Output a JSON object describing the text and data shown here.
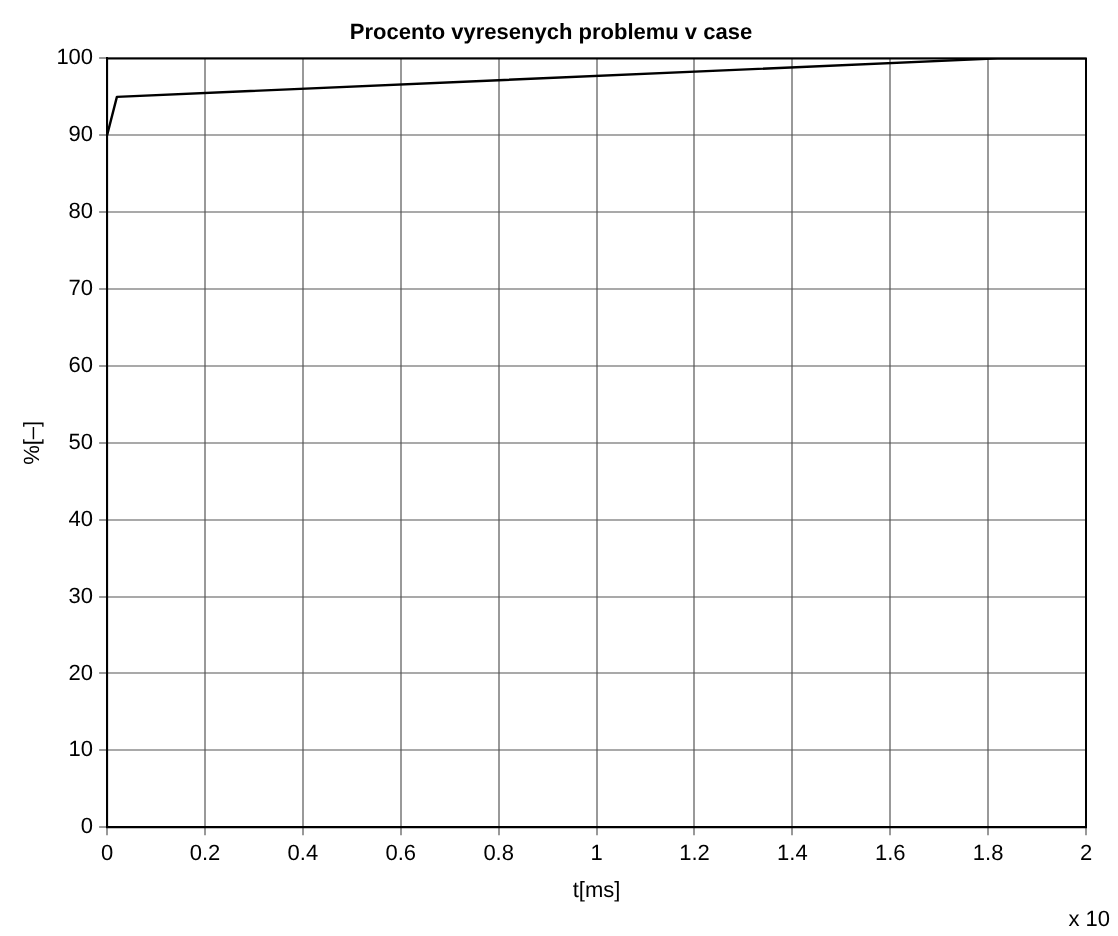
{
  "chart_data": {
    "type": "line",
    "title": "Procento vyresenych problemu v case",
    "xlabel": "t[ms]",
    "ylabel": "%[–]",
    "series": [
      {
        "color": "#000000",
        "x": [
          0,
          0.02,
          1.82,
          2
        ],
        "values": [
          90,
          95,
          100,
          100
        ]
      }
    ],
    "xlim": [
      0,
      2
    ],
    "xticks": [
      0,
      0.2,
      0.4,
      0.6,
      0.8,
      1,
      1.2,
      1.4,
      1.6,
      1.8,
      2
    ],
    "ylim": [
      0,
      100
    ],
    "yticks": [
      0,
      10,
      20,
      30,
      40,
      50,
      60,
      70,
      80,
      90,
      100
    ],
    "grid": true,
    "legend": false,
    "marker": "none",
    "line_style": "solid",
    "annotations": [
      "x 10"
    ]
  }
}
